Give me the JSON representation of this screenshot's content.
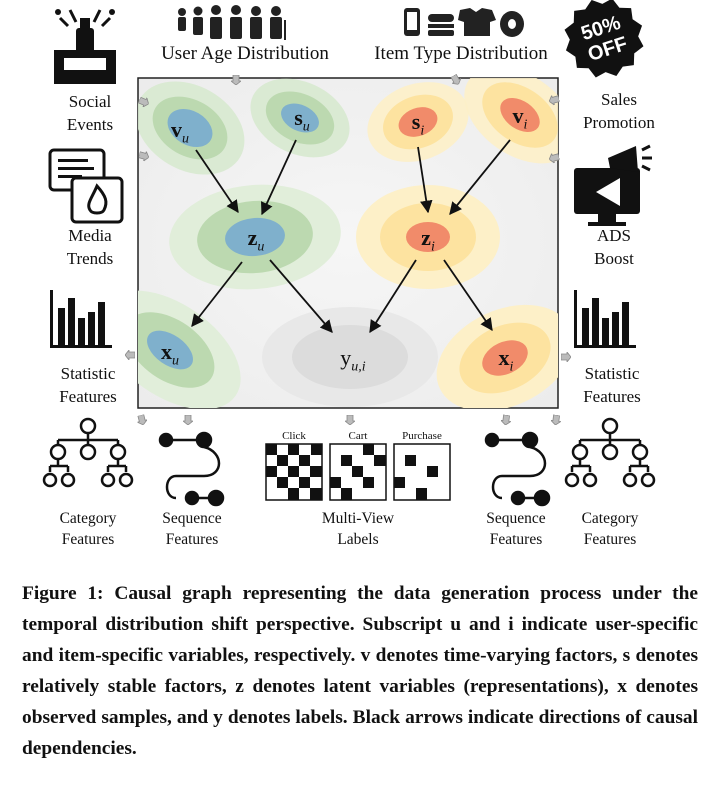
{
  "figure": {
    "top_labels": {
      "user_age": "User Age Distribution",
      "item_type": "Item Type Distribution"
    },
    "left_labels": {
      "social_events": [
        "Social",
        "Events"
      ],
      "media_trends": [
        "Media",
        "Trends"
      ],
      "statistic": [
        "Statistic",
        "Features"
      ]
    },
    "right_labels": {
      "sales_promotion": [
        "Sales",
        "Promotion"
      ],
      "ads_boost": [
        "ADS",
        "Boost"
      ],
      "statistic": [
        "Statistic",
        "Features"
      ]
    },
    "bottom_labels": {
      "category_left": [
        "Category",
        "Features"
      ],
      "sequence_left": [
        "Sequence",
        "Features"
      ],
      "multi_view": [
        "Multi-View",
        "Labels"
      ],
      "sequence_right": [
        "Sequence",
        "Features"
      ],
      "category_right": [
        "Category",
        "Features"
      ]
    },
    "multi_view_columns": [
      "Click",
      "Cart",
      "Purchase"
    ],
    "sale_badge": [
      "50%",
      "OFF"
    ],
    "nodes": {
      "v_u": {
        "base": "v",
        "sub": "u"
      },
      "s_u": {
        "base": "s",
        "sub": "u"
      },
      "s_i": {
        "base": "s",
        "sub": "i"
      },
      "v_i": {
        "base": "v",
        "sub": "i"
      },
      "z_u": {
        "base": "z",
        "sub": "u"
      },
      "z_i": {
        "base": "z",
        "sub": "i"
      },
      "x_u": {
        "base": "x",
        "sub": "u"
      },
      "y_ui": {
        "base": "y",
        "sub": "u,i"
      },
      "x_i": {
        "base": "x",
        "sub": "i"
      }
    },
    "colors": {
      "user_blob": "#bcd9b0",
      "user_core": "#7fb0cc",
      "item_blob": "#fde3a0",
      "item_core": "#f18b6a",
      "label_blob": "#e0e0e0"
    }
  },
  "caption": {
    "figure_number": "Figure 1:",
    "text": "Causal graph representing the data generation process under the temporal distribution shift perspective. Subscript u and i indicate user-specific and item-specific variables, respectively. v denotes time-varying factors, s denotes relatively stable factors, z denotes latent variables (representations), x denotes observed samples, and y denotes labels. Black arrows indicate directions of causal dependencies."
  }
}
